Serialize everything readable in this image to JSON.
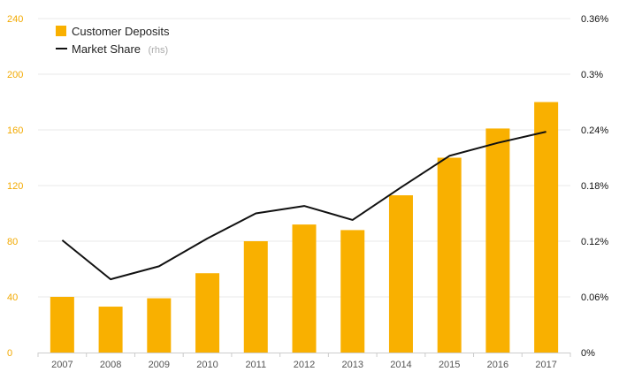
{
  "chart_data": {
    "type": "bar",
    "categories": [
      "2007",
      "2008",
      "2009",
      "2010",
      "2011",
      "2012",
      "2013",
      "2014",
      "2015",
      "2016",
      "2017"
    ],
    "series": [
      {
        "name": "Customer Deposits",
        "type": "bar",
        "axis": "left",
        "color": "#f9b000",
        "values": [
          40,
          33,
          39,
          57,
          80,
          92,
          88,
          113,
          140,
          161,
          180
        ]
      },
      {
        "name": "Market Share",
        "name_suffix": "(rhs)",
        "type": "line",
        "axis": "right",
        "color": "#111111",
        "values": [
          0.121,
          0.079,
          0.093,
          0.123,
          0.15,
          0.158,
          0.143,
          0.178,
          0.212,
          0.226,
          0.238
        ]
      }
    ],
    "yleft": {
      "lim": [
        0,
        240
      ],
      "ticks": [
        "0",
        "40",
        "80",
        "120",
        "160",
        "200",
        "240"
      ],
      "tick_color": "#f2a900"
    },
    "yright": {
      "lim": [
        0,
        0.36
      ],
      "ticks": [
        "0%",
        "0.06%",
        "0.12%",
        "0.18%",
        "0.24%",
        "0.3%",
        "0.36%"
      ],
      "tick_color": "#111111"
    },
    "title": "",
    "xlabel": "",
    "ylabel": "",
    "grid": true,
    "legend_position": "top-left"
  }
}
